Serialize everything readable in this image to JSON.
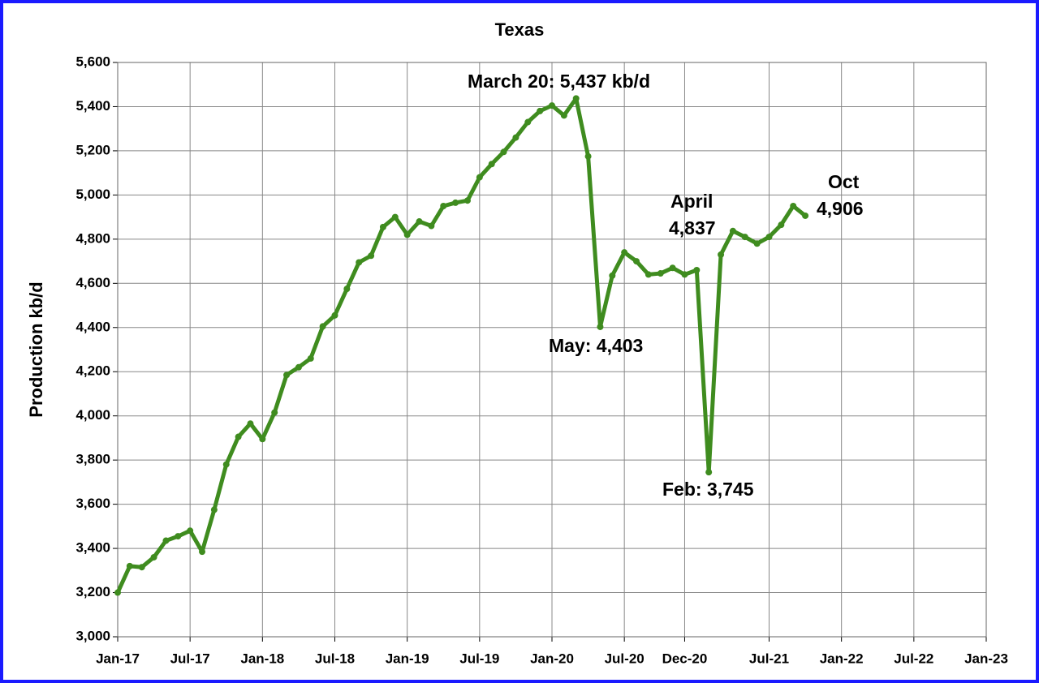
{
  "chart_data": {
    "type": "line",
    "title": "Texas",
    "y_label": "Production kb/d",
    "x": [
      "2017-01",
      "2017-02",
      "2017-03",
      "2017-04",
      "2017-05",
      "2017-06",
      "2017-07",
      "2017-08",
      "2017-09",
      "2017-10",
      "2017-11",
      "2017-12",
      "2018-01",
      "2018-02",
      "2018-03",
      "2018-04",
      "2018-05",
      "2018-06",
      "2018-07",
      "2018-08",
      "2018-09",
      "2018-10",
      "2018-11",
      "2018-12",
      "2019-01",
      "2019-02",
      "2019-03",
      "2019-04",
      "2019-05",
      "2019-06",
      "2019-07",
      "2019-08",
      "2019-09",
      "2019-10",
      "2019-11",
      "2019-12",
      "2020-01",
      "2020-02",
      "2020-03",
      "2020-04",
      "2020-05",
      "2020-06",
      "2020-07",
      "2020-08",
      "2020-09",
      "2020-10",
      "2020-11",
      "2020-12",
      "2021-01",
      "2021-02",
      "2021-03",
      "2021-04",
      "2021-05",
      "2021-06",
      "2021-07",
      "2021-08",
      "2021-09",
      "2021-10"
    ],
    "series": [
      {
        "color": "#3f8c1f",
        "values": [
          3200,
          3320,
          3315,
          3360,
          3435,
          3455,
          3480,
          3385,
          3575,
          3780,
          3905,
          3965,
          3895,
          4015,
          4185,
          4220,
          4260,
          4405,
          4455,
          4575,
          4695,
          4725,
          4855,
          4900,
          4820,
          4880,
          4860,
          4950,
          4965,
          4975,
          5080,
          5140,
          5195,
          5260,
          5330,
          5380,
          5405,
          5360,
          5437,
          5175,
          4403,
          4635,
          4740,
          4700,
          4640,
          4645,
          4670,
          4640,
          4660,
          3745,
          4730,
          4837,
          4810,
          4780,
          4810,
          4865,
          4950,
          4906
        ]
      }
    ],
    "xlim": [
      "2017-01",
      "2023-01"
    ],
    "xticks": [
      {
        "value": "2017-01",
        "label": "Jan-17"
      },
      {
        "value": "2017-07",
        "label": "Jul-17"
      },
      {
        "value": "2018-01",
        "label": "Jan-18"
      },
      {
        "value": "2018-07",
        "label": "Jul-18"
      },
      {
        "value": "2019-01",
        "label": "Jan-19"
      },
      {
        "value": "2019-07",
        "label": "Jul-19"
      },
      {
        "value": "2020-01",
        "label": "Jan-20"
      },
      {
        "value": "2020-07",
        "label": "Jul-20"
      },
      {
        "value": "2020-12",
        "label": "Dec-20"
      },
      {
        "value": "2021-07",
        "label": "Jul-21"
      },
      {
        "value": "2022-01",
        "label": "Jan-22"
      },
      {
        "value": "2022-07",
        "label": "Jul-22"
      },
      {
        "value": "2023-01",
        "label": "Jan-23"
      }
    ],
    "ylim": [
      3000,
      5600
    ],
    "yticks": [
      {
        "value": 3000,
        "label": "3,000"
      },
      {
        "value": 3200,
        "label": "3,200"
      },
      {
        "value": 3400,
        "label": "3,400"
      },
      {
        "value": 3600,
        "label": "3,600"
      },
      {
        "value": 3800,
        "label": "3,800"
      },
      {
        "value": 4000,
        "label": "4,000"
      },
      {
        "value": 4200,
        "label": "4,200"
      },
      {
        "value": 4400,
        "label": "4,400"
      },
      {
        "value": 4600,
        "label": "4,600"
      },
      {
        "value": 4800,
        "label": "4,800"
      },
      {
        "value": 5000,
        "label": "5,000"
      },
      {
        "value": 5200,
        "label": "5,200"
      },
      {
        "value": 5400,
        "label": "5,400"
      },
      {
        "value": 5600,
        "label": "5,600"
      }
    ],
    "grid": true,
    "annotations": [
      "March 20: 5,437 kb/d",
      "May: 4,403",
      "Feb: 3,745",
      "April",
      "4,837",
      "Oct",
      "4,906"
    ]
  }
}
